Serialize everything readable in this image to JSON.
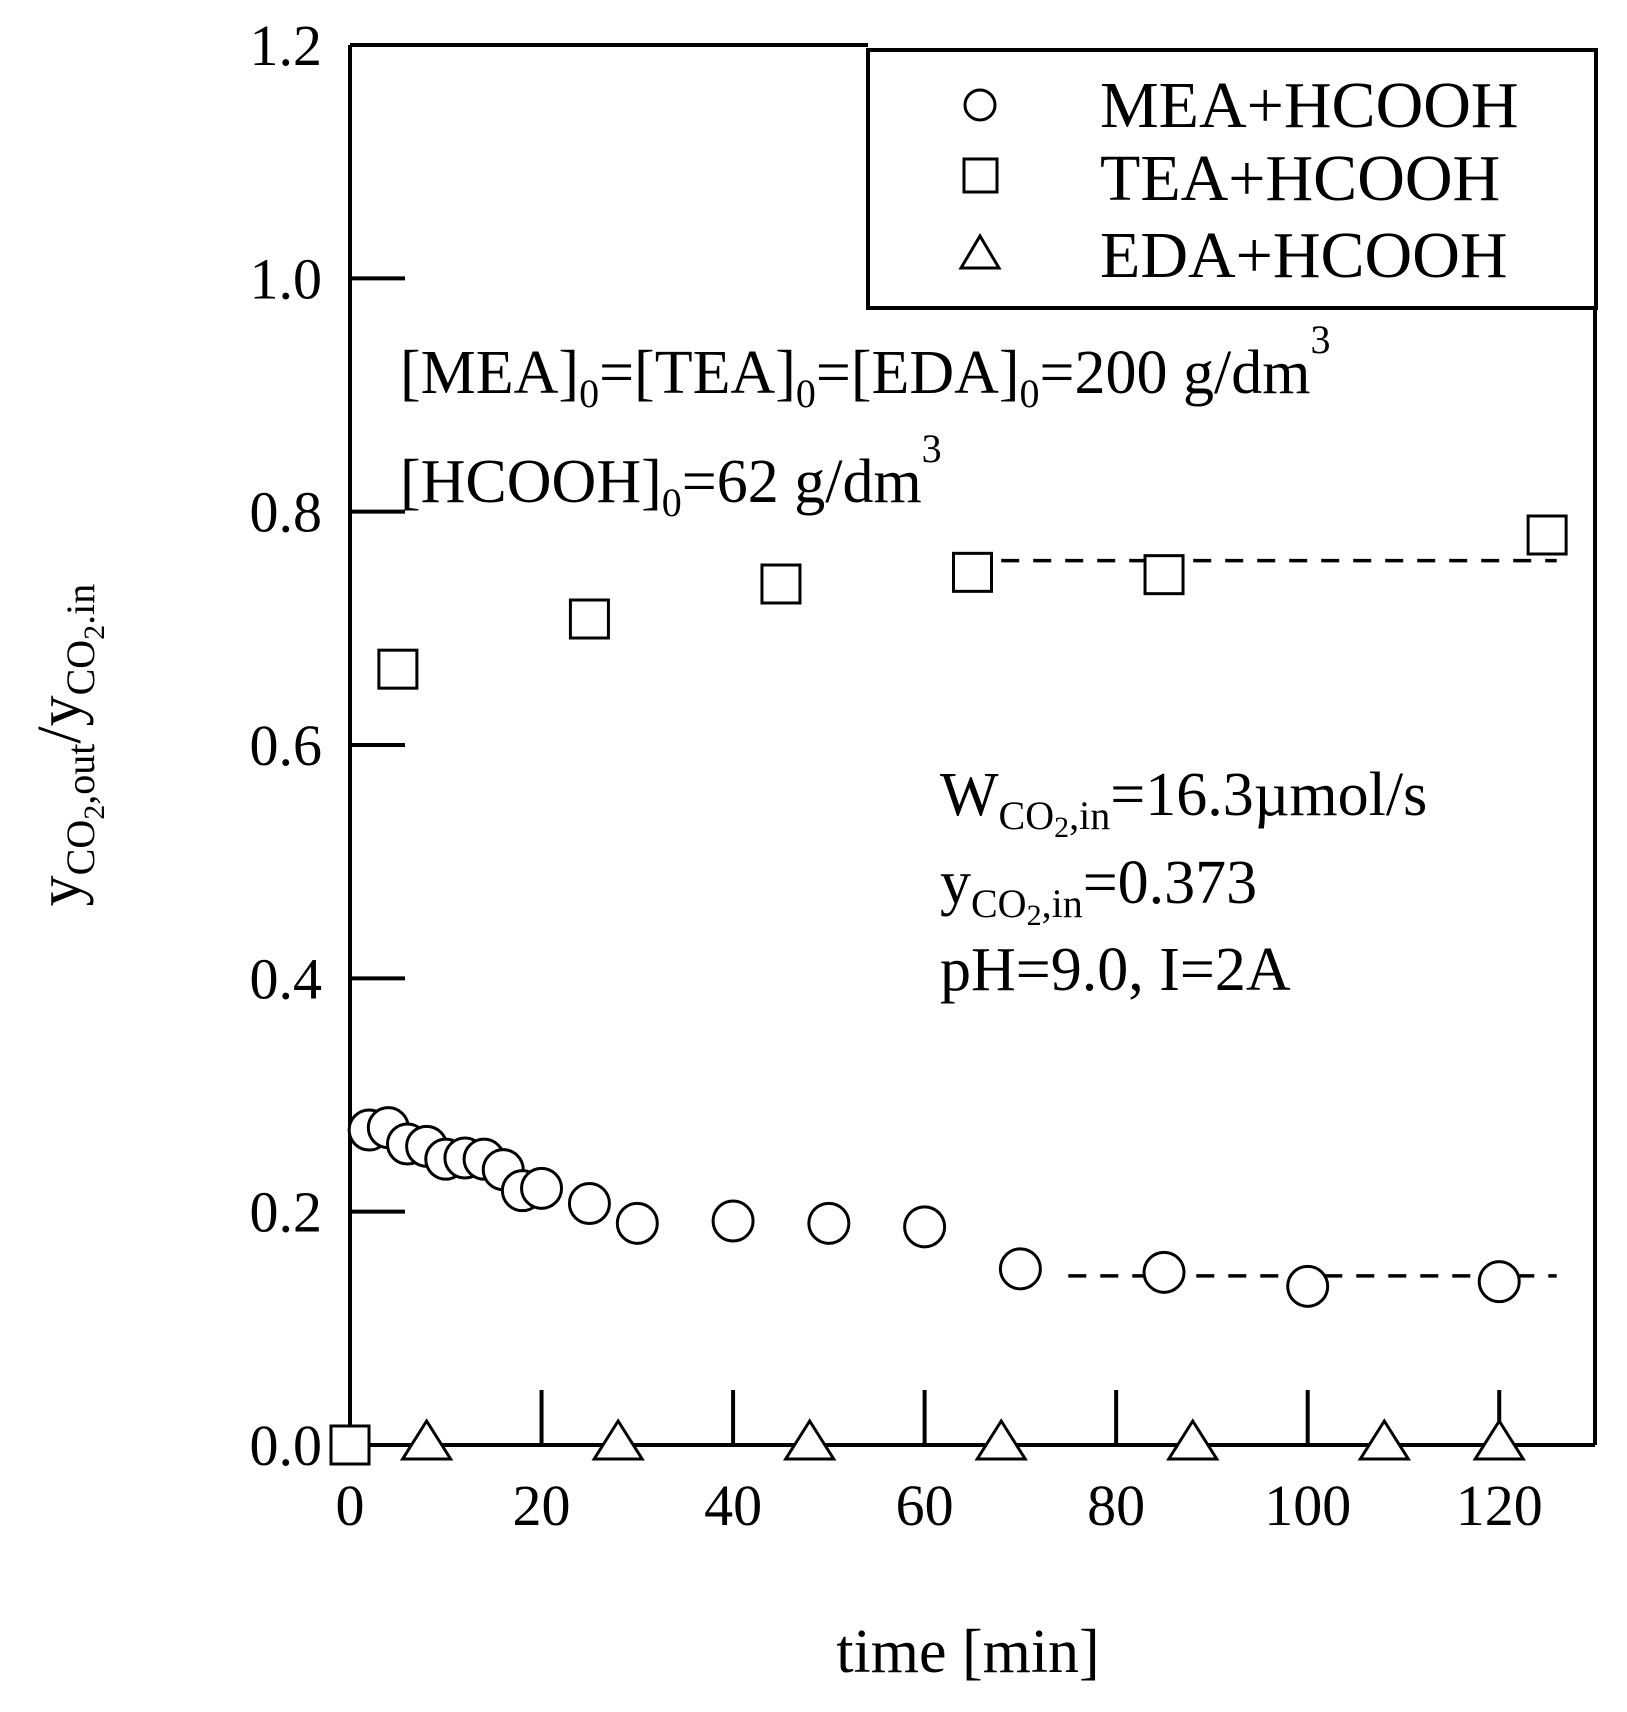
{
  "chart_data": {
    "type": "scatter",
    "title": "",
    "xlabel": "time [min]",
    "ylabel": {
      "y1": "y",
      "y1_sub": "CO",
      "y1_sub2": "2",
      "y1_sub3": ",out",
      "slash": "/",
      "y2": "y",
      "y2_sub": "CO",
      "y2_sub2": "2",
      "y2_sub3": ".in"
    },
    "xlim": [
      0,
      130
    ],
    "ylim": [
      0,
      1.2
    ],
    "xticks": [
      "0",
      "20",
      "40",
      "60",
      "80",
      "100",
      "120"
    ],
    "yticks": [
      "0.0",
      "0.2",
      "0.4",
      "0.6",
      "0.8",
      "1.0",
      "1.2"
    ],
    "legend_position": "top-right",
    "series": [
      {
        "name": "MEA+HCOOH",
        "marker": "circle",
        "points": [
          [
            2,
            0.27
          ],
          [
            4,
            0.272
          ],
          [
            6,
            0.258
          ],
          [
            8,
            0.256
          ],
          [
            10,
            0.245
          ],
          [
            12,
            0.246
          ],
          [
            14,
            0.245
          ],
          [
            16,
            0.236
          ],
          [
            18,
            0.218
          ],
          [
            20,
            0.22
          ],
          [
            25,
            0.207
          ],
          [
            30,
            0.19
          ],
          [
            40,
            0.192
          ],
          [
            50,
            0.19
          ],
          [
            60,
            0.187
          ],
          [
            70,
            0.151
          ],
          [
            85,
            0.148
          ],
          [
            100,
            0.136
          ],
          [
            120,
            0.14
          ]
        ],
        "trend": {
          "x": [
            75,
            126
          ],
          "y": [
            0.145,
            0.145
          ]
        }
      },
      {
        "name": "TEA+HCOOH",
        "marker": "square",
        "points": [
          [
            0,
            0.0
          ],
          [
            5,
            0.665
          ],
          [
            25,
            0.708
          ],
          [
            45,
            0.738
          ],
          [
            65,
            0.748
          ],
          [
            85,
            0.746
          ],
          [
            125,
            0.78
          ]
        ],
        "trend": {
          "x": [
            68,
            126
          ],
          "y": [
            0.758,
            0.758
          ]
        }
      },
      {
        "name": "EDA+HCOOH",
        "marker": "triangle",
        "points": [
          [
            8,
            0.0
          ],
          [
            28,
            0.0
          ],
          [
            48,
            0.0
          ],
          [
            68,
            0.0
          ],
          [
            88,
            0.0
          ],
          [
            108,
            0.0
          ],
          [
            120,
            0.0
          ]
        ]
      }
    ],
    "annotations": {
      "conc_line1": {
        "parts": [
          "[MEA]",
          "0",
          "=[TEA]",
          "0",
          "=[EDA]",
          "0",
          "=200 g/dm",
          "3"
        ]
      },
      "conc_line2": {
        "parts": [
          "[HCOOH]",
          "0",
          "=62 g/dm",
          "3"
        ]
      },
      "flow": {
        "main": "W",
        "sub": "CO",
        "sub2": "2",
        "sub3": ",in",
        "rest": "=16.3µmol/s"
      },
      "yin": {
        "main": "y",
        "sub": "CO",
        "sub2": "2",
        "sub3": ",in",
        "rest": "=0.373"
      },
      "cond": "pH=9.0, I=2A"
    }
  }
}
